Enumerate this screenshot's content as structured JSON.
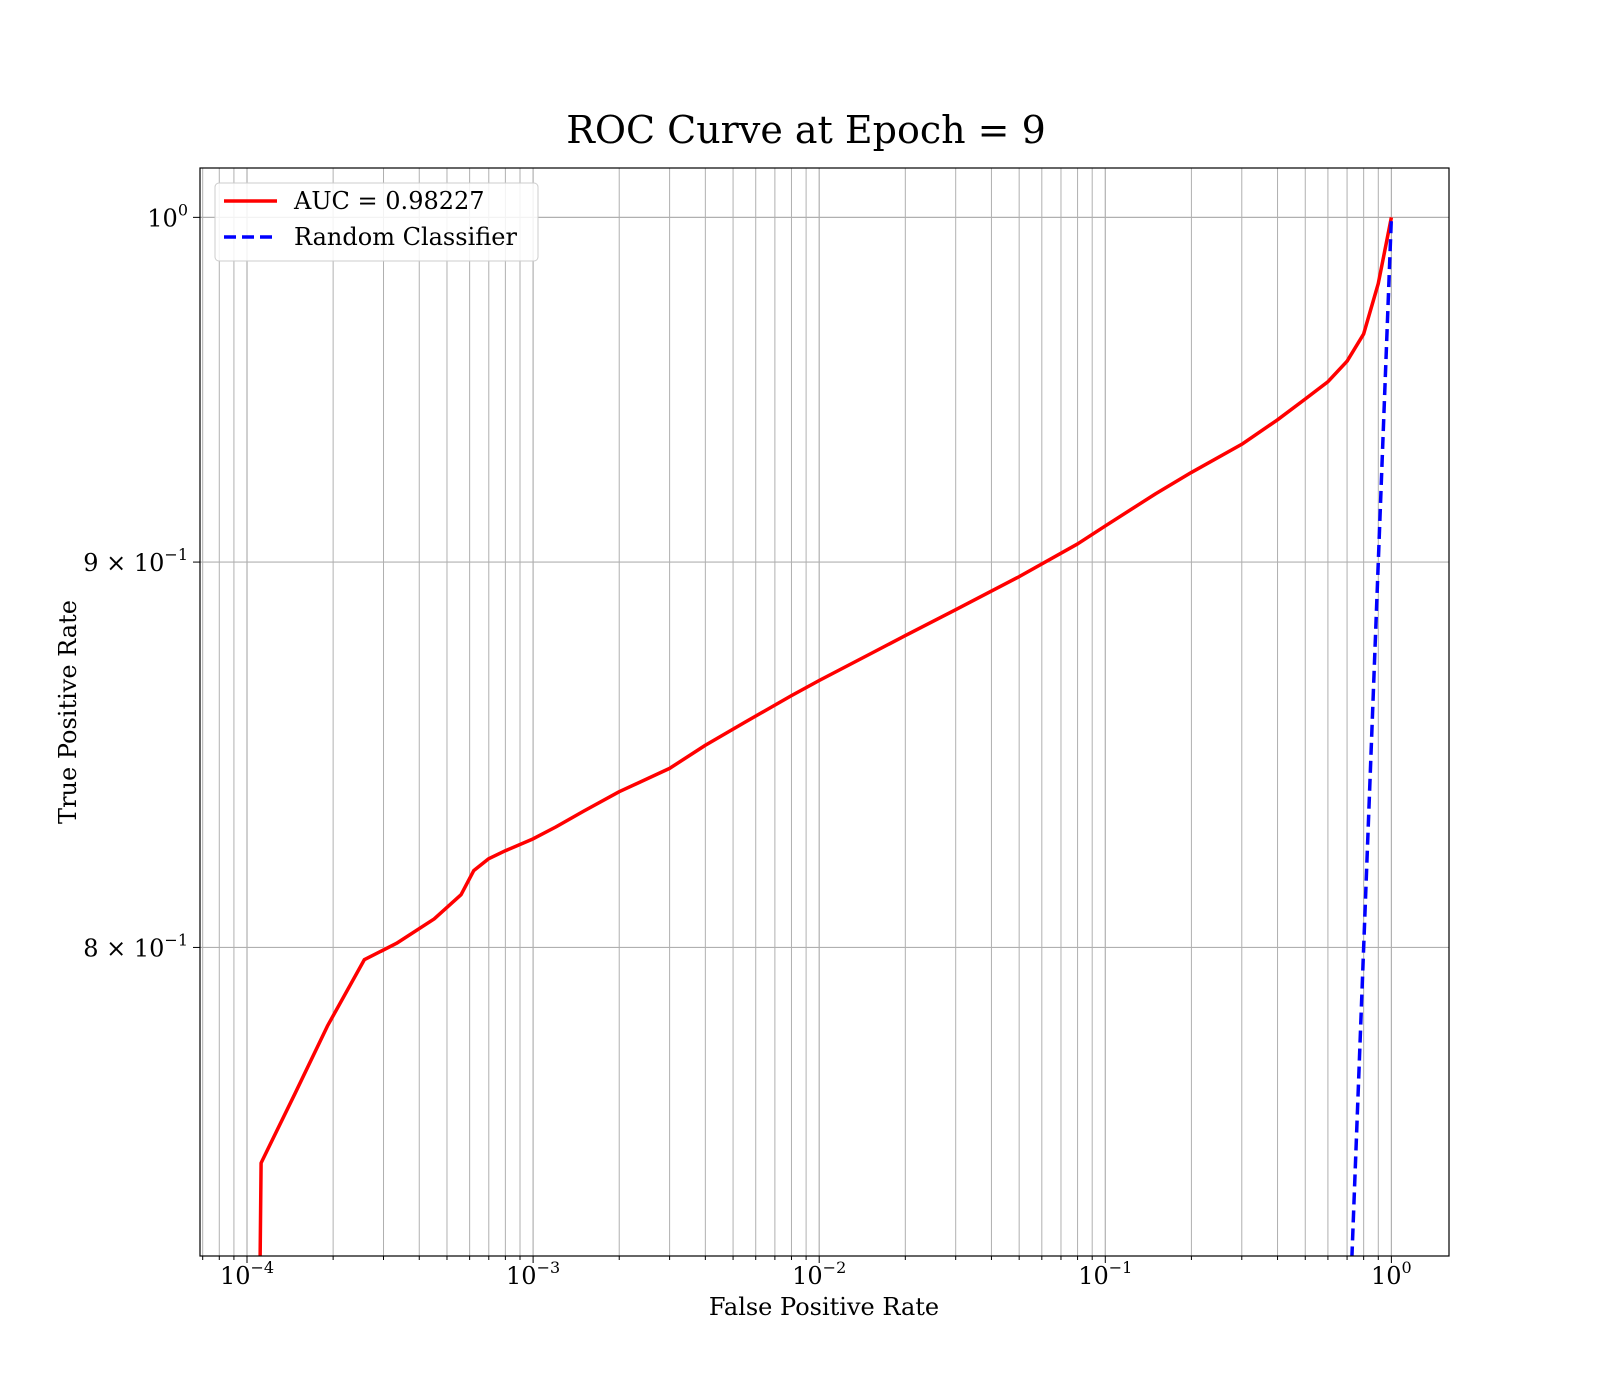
{
  "chart_data": {
    "type": "line",
    "title": "ROC Curve at Epoch = 9",
    "xlabel": "False Positive Rate",
    "ylabel": "True Positive Rate",
    "xscale": "log",
    "yscale": "log",
    "xlim": [
      6.85e-05,
      1.59
    ],
    "ylim": [
      0.728,
      1.0152
    ],
    "grid": "both (major and minor)",
    "legend_position": "upper-left",
    "x_ticks": [
      {
        "base": "10",
        "exp": "−4",
        "value": 0.0001
      },
      {
        "base": "10",
        "exp": "−3",
        "value": 0.001
      },
      {
        "base": "10",
        "exp": "−2",
        "value": 0.01
      },
      {
        "base": "10",
        "exp": "−1",
        "value": 0.1
      },
      {
        "base": "10",
        "exp": "0",
        "value": 1
      }
    ],
    "y_ticks": [
      {
        "mant": "",
        "base": "10",
        "exp": "0",
        "value": 1.0
      },
      {
        "mant": "9 × ",
        "base": "10",
        "exp": "−1",
        "value": 0.9
      },
      {
        "mant": "8 × ",
        "base": "10",
        "exp": "−1",
        "value": 0.8
      }
    ],
    "series": [
      {
        "name": "AUC = 0.98227",
        "color": "#ff0000",
        "style": "solid",
        "points": [
          [
            0.00011,
            0.7
          ],
          [
            0.000112,
            0.749
          ],
          [
            0.000147,
            0.765
          ],
          [
            0.000191,
            0.781
          ],
          [
            0.000257,
            0.797
          ],
          [
            0.000333,
            0.801
          ],
          [
            0.000451,
            0.807
          ],
          [
            0.00056,
            0.813
          ],
          [
            0.00062,
            0.819
          ],
          [
            0.0007,
            0.822
          ],
          [
            0.0008,
            0.824
          ],
          [
            0.001,
            0.827
          ],
          [
            0.0012,
            0.83
          ],
          [
            0.0015,
            0.834
          ],
          [
            0.002,
            0.839
          ],
          [
            0.003,
            0.845
          ],
          [
            0.004,
            0.851
          ],
          [
            0.0055,
            0.857
          ],
          [
            0.008,
            0.864
          ],
          [
            0.01,
            0.868
          ],
          [
            0.015,
            0.875
          ],
          [
            0.02,
            0.88
          ],
          [
            0.03,
            0.887
          ],
          [
            0.05,
            0.896
          ],
          [
            0.08,
            0.905
          ],
          [
            0.1,
            0.91
          ],
          [
            0.15,
            0.919
          ],
          [
            0.2,
            0.925
          ],
          [
            0.3,
            0.933
          ],
          [
            0.4,
            0.94
          ],
          [
            0.5,
            0.946
          ],
          [
            0.6,
            0.951
          ],
          [
            0.7,
            0.957
          ],
          [
            0.8,
            0.965
          ],
          [
            0.9,
            0.98
          ],
          [
            1.0,
            1.0
          ]
        ]
      },
      {
        "name": "Random Classifier",
        "color": "#0000ff",
        "style": "dashed",
        "points": [
          [
            0.7,
            0.7
          ],
          [
            0.8,
            0.8
          ],
          [
            0.9,
            0.9
          ],
          [
            1.0,
            1.0
          ]
        ]
      }
    ]
  }
}
